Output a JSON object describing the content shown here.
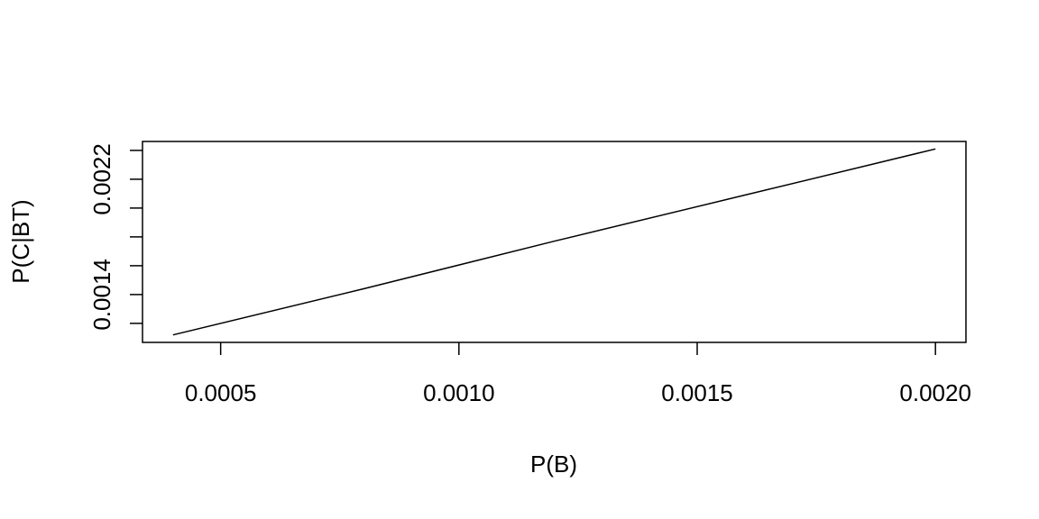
{
  "chart_data": {
    "type": "line",
    "xlabel": "P(B)",
    "ylabel": "P(C|BT)",
    "x": [
      0.0004,
      0.0008,
      0.0012,
      0.0016,
      0.002
    ],
    "series": [
      {
        "color": "#000000",
        "values": [
          0.00112,
          0.00144,
          0.00177,
          0.00209,
          0.00241
        ]
      }
    ],
    "xlim": [
      0.000336,
      0.002064
    ],
    "ylim": [
      0.001068,
      0.002462
    ],
    "xticks": [
      0.0005,
      {
        "value": 0.001,
        "label": "0.0010"
      },
      0.0015,
      {
        "value": 0.002,
        "label": "0.0020"
      }
    ],
    "yticks": [
      {
        "value": 0.0012,
        "label": null
      },
      0.0014,
      {
        "value": 0.0016,
        "label": null
      },
      {
        "value": 0.0018,
        "label": null
      },
      {
        "value": 0.002,
        "label": null
      },
      0.0022,
      {
        "value": 0.0024,
        "label": null
      }
    ]
  }
}
